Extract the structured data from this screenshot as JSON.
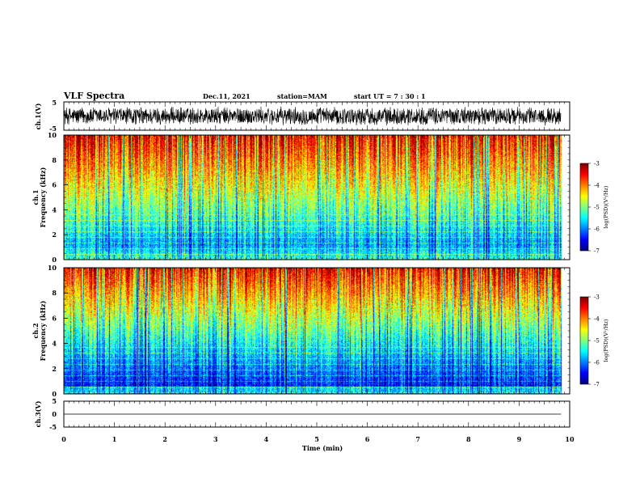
{
  "header": {
    "title": "VLF Spectra",
    "date": "Dec.11, 2021",
    "station": "station=MAM",
    "start": "start  UT  =  7 : 30 : 1"
  },
  "chart_data": [
    {
      "type": "line",
      "id": "ch1_waveform",
      "ylabel": "ch.1(V)",
      "ylim": [
        -5,
        5
      ],
      "yticks": [
        "5",
        "-5"
      ],
      "note": "dense broadband noise waveform, amplitude roughly -3 to +3 V"
    },
    {
      "type": "heatmap",
      "id": "ch1_spectrogram",
      "ylabel_top": "ch.1",
      "ylabel": "Frequency (kHz)",
      "ylim": [
        0,
        10
      ],
      "yticks": [
        "0",
        "2",
        "4",
        "6",
        "8",
        "10"
      ],
      "colorbar": {
        "label": "log(PSD)(V²/Hz)",
        "range": [
          -7,
          -3
        ],
        "ticks": [
          "-3",
          "-4",
          "-5",
          "-6",
          "-7"
        ]
      }
    },
    {
      "type": "heatmap",
      "id": "ch2_spectrogram",
      "ylabel_top": "ch.2",
      "ylabel": "Frequency (kHz)",
      "ylim": [
        0,
        10
      ],
      "yticks": [
        "0",
        "2",
        "4",
        "6",
        "8",
        "10"
      ],
      "colorbar": {
        "label": "log(PSD)(V²/Hz)",
        "range": [
          -7,
          -3
        ],
        "ticks": [
          "-3",
          "-4",
          "-5",
          "-6",
          "-7"
        ]
      }
    },
    {
      "type": "line",
      "id": "ch3_waveform",
      "ylabel": "ch.3(V)",
      "ylim": [
        -5,
        5
      ],
      "yticks": [
        "5",
        "0",
        "-5"
      ],
      "series": [
        {
          "x": [
            0,
            9.83
          ],
          "y": [
            0,
            0
          ]
        }
      ]
    }
  ],
  "xaxis": {
    "label": "Time (min)",
    "range": [
      0,
      10
    ],
    "data_end": 9.83,
    "ticks": [
      "0",
      "1",
      "2",
      "3",
      "4",
      "5",
      "6",
      "7",
      "8",
      "9",
      "10"
    ]
  },
  "colors": {
    "jet": [
      "#000080",
      "#0000ff",
      "#0080ff",
      "#00ffff",
      "#80ff80",
      "#ffff00",
      "#ff8000",
      "#ff0000",
      "#800000"
    ]
  }
}
